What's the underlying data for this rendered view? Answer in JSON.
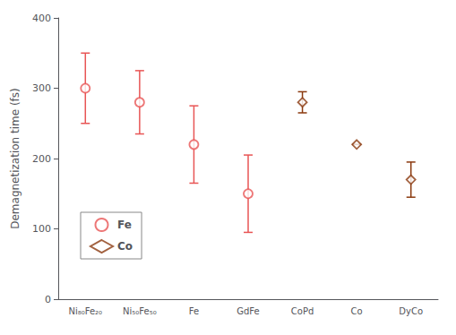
{
  "chart_data": {
    "type": "scatter",
    "categories": [
      "Ni₈₀Fe₂₀",
      "Ni₅₀Fe₅₀",
      "Fe",
      "GdFe",
      "CoPd",
      "Co",
      "DyCo"
    ],
    "ylabel": "Demagnetization time (fs)",
    "ylim": [
      0,
      400
    ],
    "yticks": [
      0,
      100,
      200,
      300,
      400
    ],
    "grid": false,
    "legend": "lower left",
    "series": [
      {
        "name": "Fe",
        "color": "#e85555",
        "marker": "circle",
        "values": [
          300,
          280,
          220,
          150,
          null,
          null,
          null
        ],
        "yerr_lower": [
          50,
          45,
          55,
          55,
          null,
          null,
          null
        ],
        "yerr_upper": [
          50,
          45,
          55,
          55,
          null,
          null,
          null
        ]
      },
      {
        "name": "Co",
        "color": "#8B3A0F",
        "marker": "diamond",
        "values": [
          null,
          null,
          null,
          null,
          280,
          220,
          170
        ],
        "yerr_lower": [
          null,
          null,
          null,
          null,
          15,
          0,
          25
        ],
        "yerr_upper": [
          null,
          null,
          null,
          null,
          15,
          0,
          25
        ]
      }
    ]
  }
}
